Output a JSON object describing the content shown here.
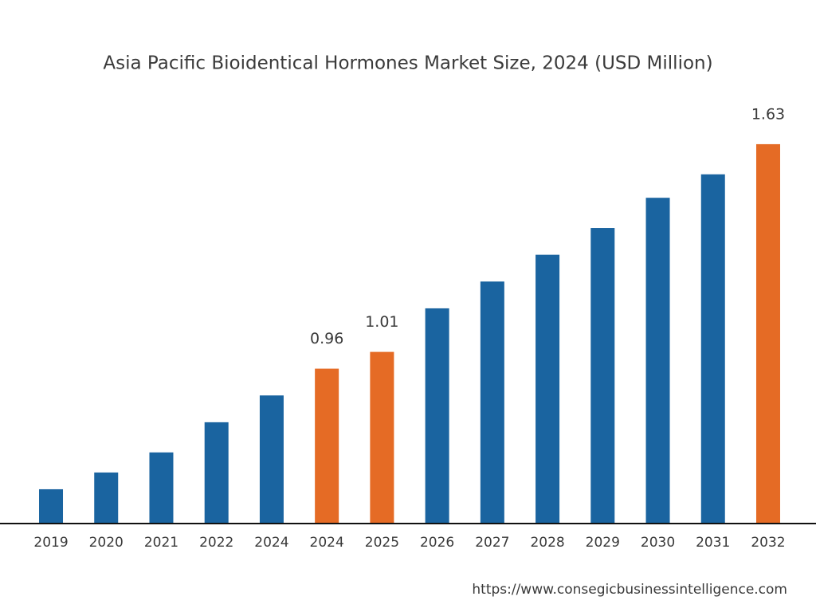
{
  "chart_data": {
    "type": "bar",
    "title": "Asia Pacific Bioidentical Hormones Market Size, 2024 (USD Million)",
    "categories": [
      "2019",
      "2020",
      "2021",
      "2022",
      "2024",
      "2024",
      "2025",
      "2026",
      "2027",
      "2028",
      "2029",
      "2030",
      "2031",
      "2032"
    ],
    "values": [
      0.6,
      0.65,
      0.71,
      0.8,
      0.88,
      0.96,
      1.01,
      1.14,
      1.22,
      1.3,
      1.38,
      1.47,
      1.54,
      1.63
    ],
    "value_labels": [
      null,
      null,
      null,
      null,
      null,
      "0.96",
      "1.01",
      null,
      null,
      null,
      null,
      null,
      null,
      "1.63"
    ],
    "colors": [
      "#1a64a0",
      "#1a64a0",
      "#1a64a0",
      "#1a64a0",
      "#1a64a0",
      "#e56b25",
      "#e56b25",
      "#1a64a0",
      "#1a64a0",
      "#1a64a0",
      "#1a64a0",
      "#1a64a0",
      "#1a64a0",
      "#e56b25"
    ],
    "ylim": [
      0.5,
      1.7
    ],
    "source": "https://www.consegicbusinessintelligence.com"
  }
}
